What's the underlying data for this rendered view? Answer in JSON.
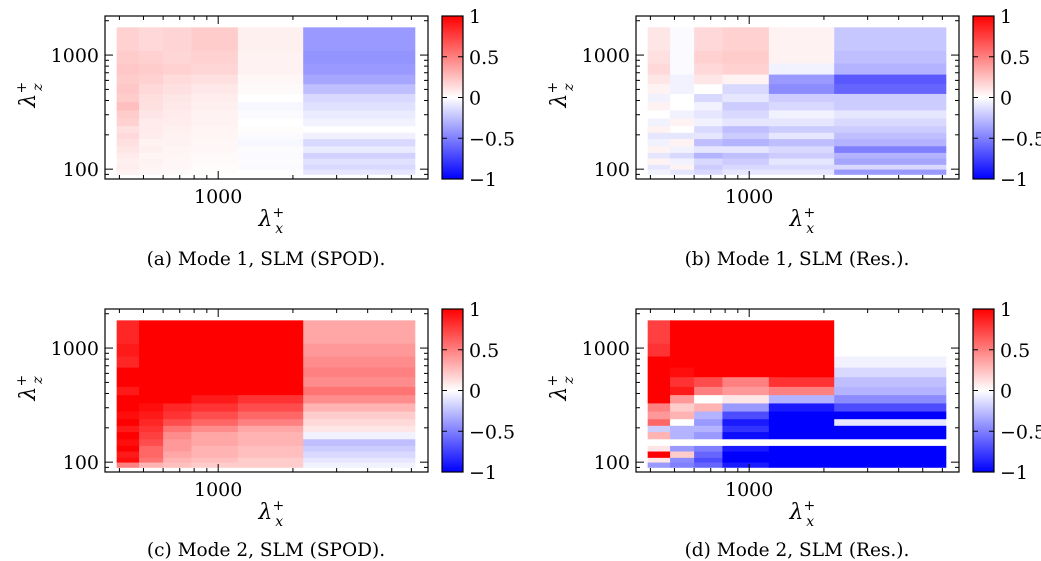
{
  "colorbar": {
    "ticks": [
      1,
      0.5,
      0,
      -0.5,
      -1
    ],
    "tick_labels": [
      "1",
      "0.5",
      "0",
      "−0.5",
      "−1"
    ],
    "colors": {
      "low": "#0000ff",
      "mid": "#ffffff",
      "high": "#ff0000"
    }
  },
  "chart_data": [
    {
      "type": "heatmap",
      "caption": "(a) Mode 1, SLM (SPOD).",
      "x_ticks": [
        1000
      ],
      "x_tick_labels": [
        "1000"
      ],
      "y_ticks": [
        100,
        1000
      ],
      "y_tick_labels": [
        "100",
        "1000"
      ],
      "xlabel_base": "λ",
      "xlabel_sup": "+",
      "xlabel_sub": "x",
      "ylabel_base": "λ",
      "ylabel_sup": "+",
      "ylabel_sub": "z",
      "xlim": [
        350,
        7000
      ],
      "ylim": [
        82,
        2200
      ],
      "log_x": true,
      "log_y": true,
      "x_edges": [
        390,
        480,
        600,
        780,
        1200,
        2200,
        6200
      ],
      "y_edges": [
        90,
        100,
        110,
        125,
        140,
        160,
        185,
        210,
        240,
        280,
        330,
        390,
        460,
        560,
        680,
        850,
        1100,
        1750
      ],
      "values": [
        [
          0.05,
          0.03,
          0.02,
          0.01,
          0.0,
          -0.1
        ],
        [
          0.07,
          0.04,
          0.03,
          0.01,
          -0.02,
          -0.15
        ],
        [
          0.06,
          0.05,
          0.03,
          0.02,
          -0.01,
          -0.12
        ],
        [
          0.08,
          0.04,
          0.04,
          0.02,
          -0.02,
          -0.18
        ],
        [
          0.1,
          0.06,
          0.04,
          0.03,
          -0.01,
          -0.08
        ],
        [
          0.12,
          0.05,
          0.05,
          0.03,
          -0.03,
          -0.15
        ],
        [
          0.15,
          0.07,
          0.05,
          0.04,
          -0.02,
          -0.06
        ],
        [
          0.12,
          0.08,
          0.06,
          0.04,
          0.01,
          0.0
        ],
        [
          0.18,
          0.08,
          0.07,
          0.05,
          0.0,
          -0.05
        ],
        [
          0.2,
          0.1,
          0.08,
          0.05,
          -0.02,
          -0.08
        ],
        [
          0.25,
          0.12,
          0.09,
          0.06,
          -0.03,
          -0.12
        ],
        [
          0.2,
          0.13,
          0.1,
          0.07,
          0.0,
          -0.15
        ],
        [
          0.22,
          0.15,
          0.12,
          0.09,
          0.02,
          -0.25
        ],
        [
          0.2,
          0.18,
          0.14,
          0.12,
          0.03,
          -0.35
        ],
        [
          0.22,
          0.2,
          0.18,
          0.16,
          0.05,
          -0.4
        ],
        [
          0.2,
          0.18,
          0.16,
          0.18,
          0.05,
          -0.42
        ],
        [
          0.18,
          0.15,
          0.17,
          0.2,
          0.06,
          -0.4
        ]
      ]
    },
    {
      "type": "heatmap",
      "caption": "(b) Mode 1, SLM (Res.).",
      "x_ticks": [
        1000
      ],
      "x_tick_labels": [
        "1000"
      ],
      "y_ticks": [
        100,
        1000
      ],
      "y_tick_labels": [
        "100",
        "1000"
      ],
      "xlabel_base": "λ",
      "xlabel_sup": "+",
      "xlabel_sub": "x",
      "ylabel_base": "λ",
      "ylabel_sup": "+",
      "ylabel_sub": "z",
      "xlim": [
        350,
        7000
      ],
      "ylim": [
        82,
        2200
      ],
      "log_x": true,
      "log_y": true,
      "x_edges": [
        390,
        480,
        600,
        780,
        1200,
        2200,
        6200
      ],
      "y_edges": [
        90,
        100,
        110,
        125,
        140,
        160,
        185,
        210,
        240,
        280,
        330,
        390,
        460,
        560,
        680,
        850,
        1100,
        1750
      ],
      "values": [
        [
          -0.05,
          -0.1,
          -0.15,
          -0.1,
          -0.1,
          -0.4
        ],
        [
          -0.1,
          0.05,
          -0.2,
          -0.15,
          -0.15,
          -0.15
        ],
        [
          0.05,
          -0.05,
          -0.15,
          -0.2,
          -0.1,
          -0.35
        ],
        [
          -0.1,
          -0.15,
          -0.3,
          -0.25,
          -0.2,
          -0.3
        ],
        [
          0.05,
          -0.05,
          -0.1,
          -0.1,
          -0.15,
          -0.5
        ],
        [
          -0.05,
          0.05,
          -0.25,
          -0.3,
          -0.25,
          -0.3
        ],
        [
          -0.1,
          -0.1,
          -0.1,
          -0.2,
          -0.1,
          -0.25
        ],
        [
          0.05,
          0.0,
          -0.15,
          -0.25,
          -0.2,
          -0.2
        ],
        [
          -0.05,
          0.05,
          -0.05,
          -0.1,
          -0.1,
          -0.15
        ],
        [
          0.0,
          -0.05,
          -0.1,
          -0.15,
          -0.05,
          -0.1
        ],
        [
          0.05,
          0.0,
          -0.05,
          -0.2,
          -0.15,
          -0.2
        ],
        [
          -0.05,
          0.0,
          -0.15,
          -0.1,
          -0.2,
          -0.2
        ],
        [
          0.05,
          -0.05,
          0.0,
          -0.15,
          -0.45,
          -0.6
        ],
        [
          0.1,
          -0.05,
          0.1,
          0.05,
          -0.4,
          -0.65
        ],
        [
          0.15,
          -0.02,
          0.15,
          0.18,
          -0.05,
          -0.3
        ],
        [
          0.12,
          -0.02,
          0.18,
          0.2,
          0.05,
          -0.25
        ],
        [
          0.1,
          -0.02,
          0.15,
          0.18,
          0.05,
          -0.22
        ]
      ]
    },
    {
      "type": "heatmap",
      "caption": "(c) Mode 2, SLM (SPOD).",
      "x_ticks": [
        1000
      ],
      "x_tick_labels": [
        "1000"
      ],
      "y_ticks": [
        100,
        1000
      ],
      "y_tick_labels": [
        "100",
        "1000"
      ],
      "xlabel_base": "λ",
      "xlabel_sup": "+",
      "xlabel_sub": "x",
      "ylabel_base": "λ",
      "ylabel_sup": "+",
      "ylabel_sub": "z",
      "xlim": [
        350,
        7000
      ],
      "ylim": [
        82,
        2200
      ],
      "log_x": true,
      "log_y": true,
      "x_edges": [
        390,
        480,
        600,
        780,
        1200,
        2200,
        6200
      ],
      "y_edges": [
        90,
        100,
        110,
        125,
        140,
        160,
        185,
        210,
        240,
        280,
        330,
        390,
        460,
        560,
        680,
        850,
        1100,
        1750
      ],
      "values": [
        [
          0.5,
          0.3,
          0.25,
          0.2,
          0.2,
          -0.05
        ],
        [
          0.95,
          0.55,
          0.3,
          0.25,
          0.2,
          -0.1
        ],
        [
          0.9,
          0.6,
          0.35,
          0.3,
          0.25,
          -0.15
        ],
        [
          1.0,
          0.6,
          0.4,
          0.3,
          0.25,
          -0.2
        ],
        [
          0.95,
          0.7,
          0.4,
          0.35,
          0.3,
          -0.25
        ],
        [
          1.0,
          0.75,
          0.45,
          0.35,
          0.3,
          -0.05
        ],
        [
          0.9,
          0.8,
          0.55,
          0.45,
          0.35,
          0.1
        ],
        [
          1.0,
          0.85,
          0.7,
          0.6,
          0.5,
          0.15
        ],
        [
          0.95,
          0.9,
          0.8,
          0.7,
          0.6,
          0.2
        ],
        [
          1.0,
          0.95,
          0.85,
          0.8,
          0.7,
          0.3
        ],
        [
          1.0,
          1.0,
          1.0,
          0.9,
          0.8,
          0.45
        ],
        [
          0.9,
          1.0,
          1.0,
          1.0,
          1.0,
          0.55
        ],
        [
          1.0,
          1.0,
          1.0,
          1.0,
          1.0,
          0.45
        ],
        [
          1.0,
          1.0,
          1.0,
          1.0,
          1.0,
          0.5
        ],
        [
          0.85,
          1.0,
          1.0,
          1.0,
          1.0,
          0.45
        ],
        [
          0.9,
          1.0,
          1.0,
          1.0,
          1.0,
          0.4
        ],
        [
          0.85,
          1.0,
          1.0,
          1.0,
          1.0,
          0.35
        ]
      ]
    },
    {
      "type": "heatmap",
      "caption": "(d) Mode 2, SLM (Res.).",
      "x_ticks": [
        1000
      ],
      "x_tick_labels": [
        "1000"
      ],
      "y_ticks": [
        100,
        1000
      ],
      "y_tick_labels": [
        "100",
        "1000"
      ],
      "xlabel_base": "λ",
      "xlabel_sup": "+",
      "xlabel_sub": "x",
      "ylabel_base": "λ",
      "ylabel_sup": "+",
      "ylabel_sub": "z",
      "xlim": [
        350,
        7000
      ],
      "ylim": [
        82,
        2200
      ],
      "log_x": true,
      "log_y": true,
      "x_edges": [
        390,
        480,
        600,
        780,
        1200,
        2200,
        6200
      ],
      "y_edges": [
        90,
        100,
        110,
        125,
        140,
        160,
        185,
        210,
        240,
        280,
        330,
        390,
        460,
        560,
        680,
        850,
        1100,
        1750
      ],
      "values": [
        [
          -0.4,
          -0.5,
          -0.6,
          -0.9,
          -1.0,
          -1.0
        ],
        [
          0.1,
          -0.45,
          -0.7,
          -1.0,
          -1.0,
          -1.0
        ],
        [
          1.0,
          0.2,
          -0.6,
          -1.0,
          -1.0,
          -1.0
        ],
        [
          0.1,
          -0.4,
          -0.5,
          -0.9,
          -1.0,
          -1.0
        ],
        [
          0.0,
          0.0,
          0.0,
          0.0,
          0.0,
          0.0
        ],
        [
          0.3,
          -0.3,
          -0.4,
          -0.95,
          -1.0,
          -1.0
        ],
        [
          -0.2,
          -0.3,
          -0.3,
          -0.8,
          -1.0,
          -1.0
        ],
        [
          0.6,
          0.0,
          -0.4,
          -0.9,
          -1.0,
          -0.1
        ],
        [
          0.4,
          0.3,
          -0.3,
          -0.7,
          -1.0,
          -1.0
        ],
        [
          0.5,
          0.2,
          0.3,
          -0.4,
          -0.9,
          -0.7
        ],
        [
          1.0,
          0.4,
          0.0,
          0.1,
          -0.3,
          -0.45
        ],
        [
          1.0,
          0.9,
          0.5,
          0.4,
          0.5,
          -0.3
        ],
        [
          1.0,
          0.8,
          0.7,
          0.5,
          0.8,
          -0.25
        ],
        [
          1.0,
          0.95,
          1.0,
          1.0,
          1.0,
          -0.15
        ],
        [
          1.0,
          1.0,
          1.0,
          1.0,
          1.0,
          -0.05
        ],
        [
          0.8,
          1.0,
          1.0,
          1.0,
          1.0,
          0.0
        ],
        [
          0.75,
          1.0,
          1.0,
          1.0,
          1.0,
          0.0
        ]
      ]
    }
  ]
}
